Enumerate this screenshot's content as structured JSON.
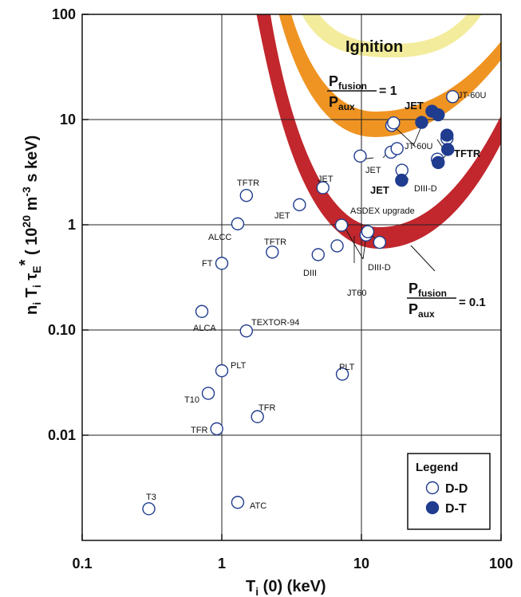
{
  "chart_data": {
    "type": "scatter",
    "xscale": "log",
    "yscale": "log",
    "xlim": [
      0.1,
      100
    ],
    "ylim": [
      0.001,
      100
    ],
    "x_ticks": [
      "0.1",
      "1",
      "10",
      "100"
    ],
    "y_ticks": [
      "100",
      "10",
      "1",
      "0.10",
      "0.01"
    ],
    "xlabel": "T",
    "xlabel_sub": "i",
    "xlabel_rest": " (0) (keV)",
    "ylabel_parts": {
      "n": "n",
      "n_sub": "i",
      "T": " T",
      "T_sub": "i",
      "tau": " τ",
      "tau_sub": "E",
      "star": "*",
      "open": " ( 10",
      "sup": "20",
      "m": " m",
      "msup": "-3",
      "rest": " s keV)"
    },
    "grid": true,
    "curves": {
      "ignition": {
        "label": "Ignition",
        "color": "#f3ec9c"
      },
      "breakeven": {
        "num": "P",
        "num_sub": "fusion",
        "den": "P",
        "den_sub": "aux",
        "eq": "= 1",
        "color": "#ef9422"
      },
      "tenth": {
        "num": "P",
        "num_sub": "fusion",
        "den": "P",
        "den_sub": "aux",
        "eq": "= 0.1",
        "color": "#c1272d"
      }
    },
    "series": [
      {
        "name": "D-D",
        "points": [
          {
            "x": 0.3,
            "y": 0.002,
            "label": "T3"
          },
          {
            "x": 1.3,
            "y": 0.0023,
            "label": "ATC"
          },
          {
            "x": 0.92,
            "y": 0.0115,
            "label": "TFR"
          },
          {
            "x": 1.8,
            "y": 0.015,
            "label": "TFR"
          },
          {
            "x": 0.8,
            "y": 0.025,
            "label": "T10"
          },
          {
            "x": 1.0,
            "y": 0.041,
            "label": "PLT"
          },
          {
            "x": 7.3,
            "y": 0.038,
            "label": "PLT"
          },
          {
            "x": 0.72,
            "y": 0.15,
            "label": "ALCA"
          },
          {
            "x": 1.5,
            "y": 0.098,
            "label": "TEXTOR-94"
          },
          {
            "x": 1.0,
            "y": 0.43,
            "label": "FT"
          },
          {
            "x": 1.3,
            "y": 1.02,
            "label": "ALCC"
          },
          {
            "x": 1.5,
            "y": 1.9,
            "label": "TFTR"
          },
          {
            "x": 2.3,
            "y": 0.55,
            "label": "TFTR"
          },
          {
            "x": 3.6,
            "y": 1.55,
            "label": "JET"
          },
          {
            "x": 4.9,
            "y": 0.52,
            "label": "DIII"
          },
          {
            "x": 5.3,
            "y": 2.25,
            "label": "JET"
          },
          {
            "x": 6.7,
            "y": 0.63,
            "label": "JT60"
          },
          {
            "x": 7.2,
            "y": 0.99,
            "label": ""
          },
          {
            "x": 10.8,
            "y": 0.8,
            "label": ""
          },
          {
            "x": 11.1,
            "y": 0.86,
            "label": ""
          },
          {
            "x": 13.5,
            "y": 0.68,
            "label": ""
          },
          {
            "x": 9.8,
            "y": 4.5,
            "label": ""
          },
          {
            "x": 16.3,
            "y": 4.9,
            "label": ""
          },
          {
            "x": 18.0,
            "y": 5.3,
            "label": ""
          },
          {
            "x": 19.5,
            "y": 3.3,
            "label": ""
          },
          {
            "x": 16.5,
            "y": 8.8,
            "label": ""
          },
          {
            "x": 17.0,
            "y": 9.3,
            "label": ""
          },
          {
            "x": 35.0,
            "y": 4.2,
            "label": ""
          },
          {
            "x": 41.0,
            "y": 6.6,
            "label": ""
          },
          {
            "x": 45.0,
            "y": 16.5,
            "label": "JT-60U"
          }
        ]
      },
      {
        "name": "D-T",
        "points": [
          {
            "x": 19.4,
            "y": 2.65,
            "label": ""
          },
          {
            "x": 27.0,
            "y": 9.4,
            "label": ""
          },
          {
            "x": 32.0,
            "y": 12.0,
            "label": ""
          },
          {
            "x": 35.5,
            "y": 11.1,
            "label": ""
          },
          {
            "x": 35.5,
            "y": 3.9,
            "label": ""
          },
          {
            "x": 41.0,
            "y": 7.1,
            "label": ""
          },
          {
            "x": 41.5,
            "y": 5.2,
            "label": ""
          }
        ]
      }
    ],
    "annotations": [
      "JET",
      "JET",
      "JT-60U",
      "TFTR",
      "JET",
      "DIII-D",
      "ASDEX upgrade",
      "DIII-D",
      "JET"
    ],
    "legend": {
      "title": "Legend",
      "position": "bottom-right",
      "entries": [
        "D-D",
        "D-T"
      ]
    },
    "colors": {
      "point_edge": "#1f3c8f",
      "dt_fill": "#1f3c8f",
      "dd_fill": "#ffffff",
      "grid": "#222222"
    }
  }
}
